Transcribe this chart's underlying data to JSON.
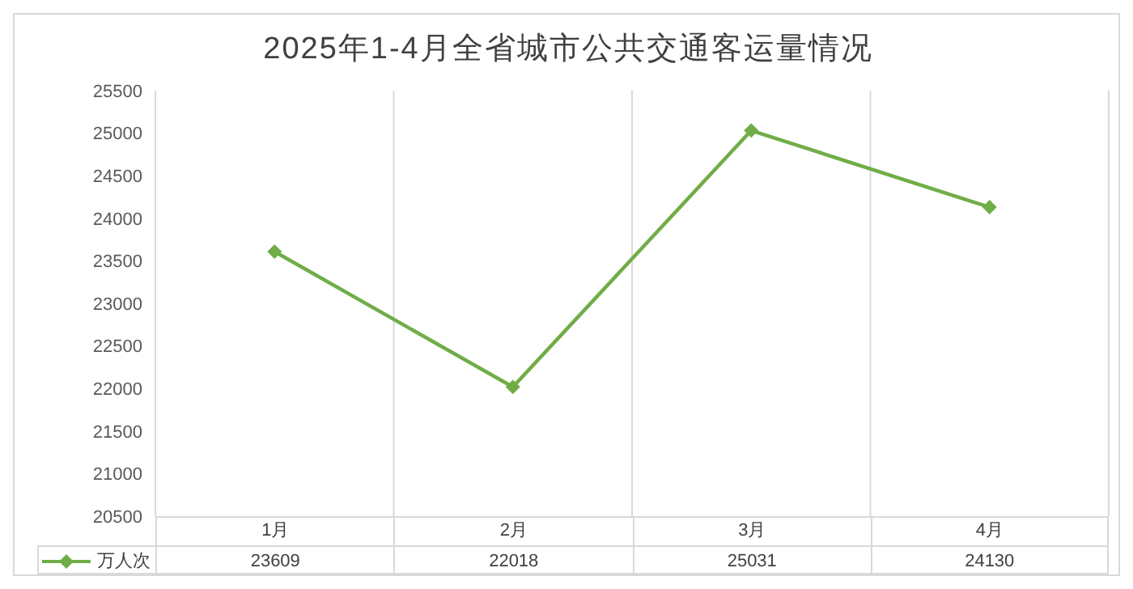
{
  "chart_data": {
    "type": "line",
    "title": "2025年1-4月全省城市公共交通客运量情况",
    "categories": [
      "1月",
      "2月",
      "3月",
      "4月"
    ],
    "series": [
      {
        "name": "万人次",
        "color": "#70ad47",
        "values": [
          23609,
          22018,
          25031,
          24130
        ]
      }
    ],
    "ylim": [
      20500,
      25500
    ],
    "yticks": [
      20500,
      21000,
      21500,
      22000,
      22500,
      23000,
      23500,
      24000,
      24500,
      25000,
      25500
    ],
    "grid": "x",
    "legend": "bottom",
    "marker": "diamond",
    "line_style": "solid",
    "data_labels": true
  }
}
